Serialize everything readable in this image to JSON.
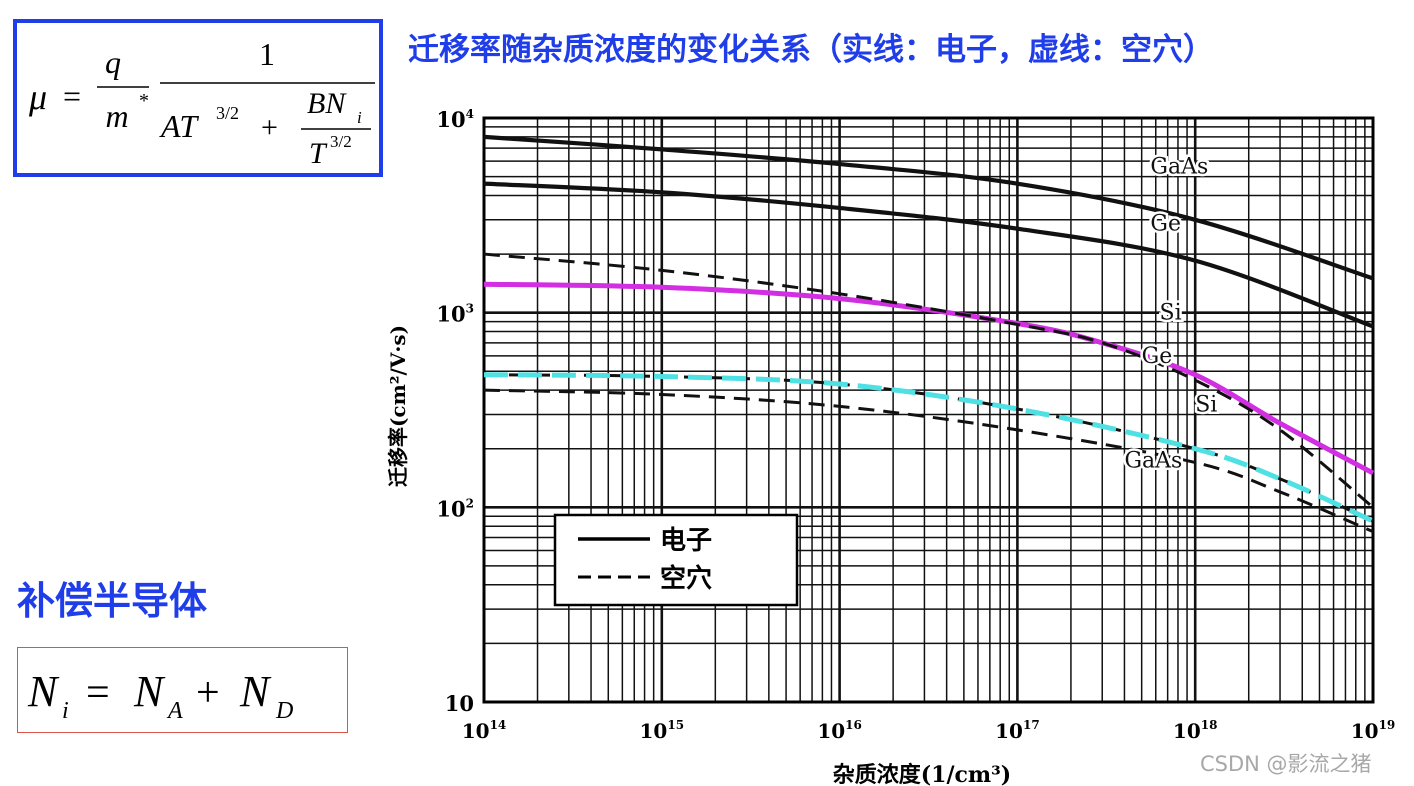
{
  "title": "迁移率随杂质浓度的变化关系（实线：电子，虚线：空穴）",
  "formula": {
    "lhs": "μ",
    "num1": "q",
    "den1": "m",
    "den1_sup": "*",
    "num2": "1",
    "den2_a": "AT",
    "den2_a_exp": "3/2",
    "den2_plus": "+",
    "frac_num": "BN",
    "frac_num_sub": "i",
    "frac_den": "T",
    "frac_den_exp": "3/2"
  },
  "compensated": {
    "title": "补偿半导体",
    "formula_lhs": "N",
    "formula_lhs_sub": "i",
    "formula_eq": "=",
    "formula_t1": "N",
    "formula_t1_sub": "A",
    "formula_plus": "+",
    "formula_t2": "N",
    "formula_t2_sub": "D"
  },
  "watermark": "CSDN @影流之猪",
  "colors": {
    "accent_blue": "#1f3de8",
    "highlight_si_electron": "#d22ee2",
    "highlight_si_hole": "#4fe0e4",
    "box_red": "#d9544a"
  },
  "chart_data": {
    "type": "line",
    "x_scale": "log",
    "y_scale": "log",
    "xlabel": "杂质浓度(1/cm³)",
    "ylabel": "迁移率(cm²/V·s)",
    "xlim": [
      100000000000000.0,
      1e+19
    ],
    "ylim": [
      10,
      10000
    ],
    "x_ticks": [
      {
        "value": 100000000000000.0,
        "base": "10",
        "exp": "14"
      },
      {
        "value": 1000000000000000.0,
        "base": "10",
        "exp": "15"
      },
      {
        "value": 1e+16,
        "base": "10",
        "exp": "16"
      },
      {
        "value": 1e+17,
        "base": "10",
        "exp": "17"
      },
      {
        "value": 1e+18,
        "base": "10",
        "exp": "18"
      },
      {
        "value": 1e+19,
        "base": "10",
        "exp": "19"
      }
    ],
    "y_ticks": [
      {
        "value": 10,
        "base": "10",
        "exp": ""
      },
      {
        "value": 100,
        "base": "10",
        "exp": "2"
      },
      {
        "value": 1000,
        "base": "10",
        "exp": "3"
      },
      {
        "value": 10000,
        "base": "10",
        "exp": "4"
      }
    ],
    "grid": true,
    "legend": {
      "placement": "lower-left",
      "entries": [
        {
          "label": "电子",
          "style": "solid"
        },
        {
          "label": "空穴",
          "style": "dashed"
        }
      ]
    },
    "series": [
      {
        "name": "GaAs",
        "carrier": "electron",
        "style": "solid",
        "label_at": [
          5.6e+17,
          5200
        ],
        "x": [
          100000000000000.0,
          1000000000000000.0,
          1e+16,
          1e+17,
          1e+18,
          1e+19
        ],
        "y": [
          8000,
          6900,
          5800,
          4600,
          3000,
          1500
        ]
      },
      {
        "name": "Ge",
        "carrier": "electron",
        "style": "solid",
        "label_at": [
          5.6e+17,
          2650
        ],
        "x": [
          100000000000000.0,
          1000000000000000.0,
          1e+16,
          1e+17,
          1e+18,
          1e+19
        ],
        "y": [
          4600,
          4150,
          3450,
          2700,
          1850,
          850
        ]
      },
      {
        "name": "Si",
        "carrier": "electron",
        "style": "solid",
        "highlight": true,
        "label_at": [
          6.3e+17,
          920
        ],
        "x": [
          100000000000000.0,
          1000000000000000.0,
          1e+16,
          1e+17,
          3e+17,
          1e+18,
          3e+18,
          1e+19
        ],
        "y": [
          1400,
          1350,
          1180,
          880,
          700,
          480,
          270,
          150
        ]
      },
      {
        "name": "Ge",
        "carrier": "hole",
        "style": "dashed",
        "label_at": [
          5e+17,
          550
        ],
        "x": [
          100000000000000.0,
          1000000000000000.0,
          1e+16,
          1e+17,
          3e+17,
          1e+18,
          3e+18,
          1e+19
        ],
        "y": [
          2000,
          1650,
          1250,
          870,
          700,
          450,
          250,
          100
        ]
      },
      {
        "name": "Si",
        "carrier": "hole",
        "style": "dashed",
        "highlight": true,
        "label_at": [
          1e+18,
          310
        ],
        "x": [
          100000000000000.0,
          1000000000000000.0,
          1e+16,
          1e+17,
          1e+18,
          3e+18,
          1e+19
        ],
        "y": [
          480,
          470,
          430,
          320,
          200,
          140,
          85
        ]
      },
      {
        "name": "GaAs",
        "carrier": "hole",
        "style": "dashed",
        "label_at": [
          4e+17,
          160
        ],
        "x": [
          100000000000000.0,
          1000000000000000.0,
          1e+16,
          1e+17,
          1e+18,
          3e+18,
          1e+19
        ],
        "y": [
          400,
          380,
          330,
          250,
          170,
          120,
          75
        ]
      }
    ]
  }
}
